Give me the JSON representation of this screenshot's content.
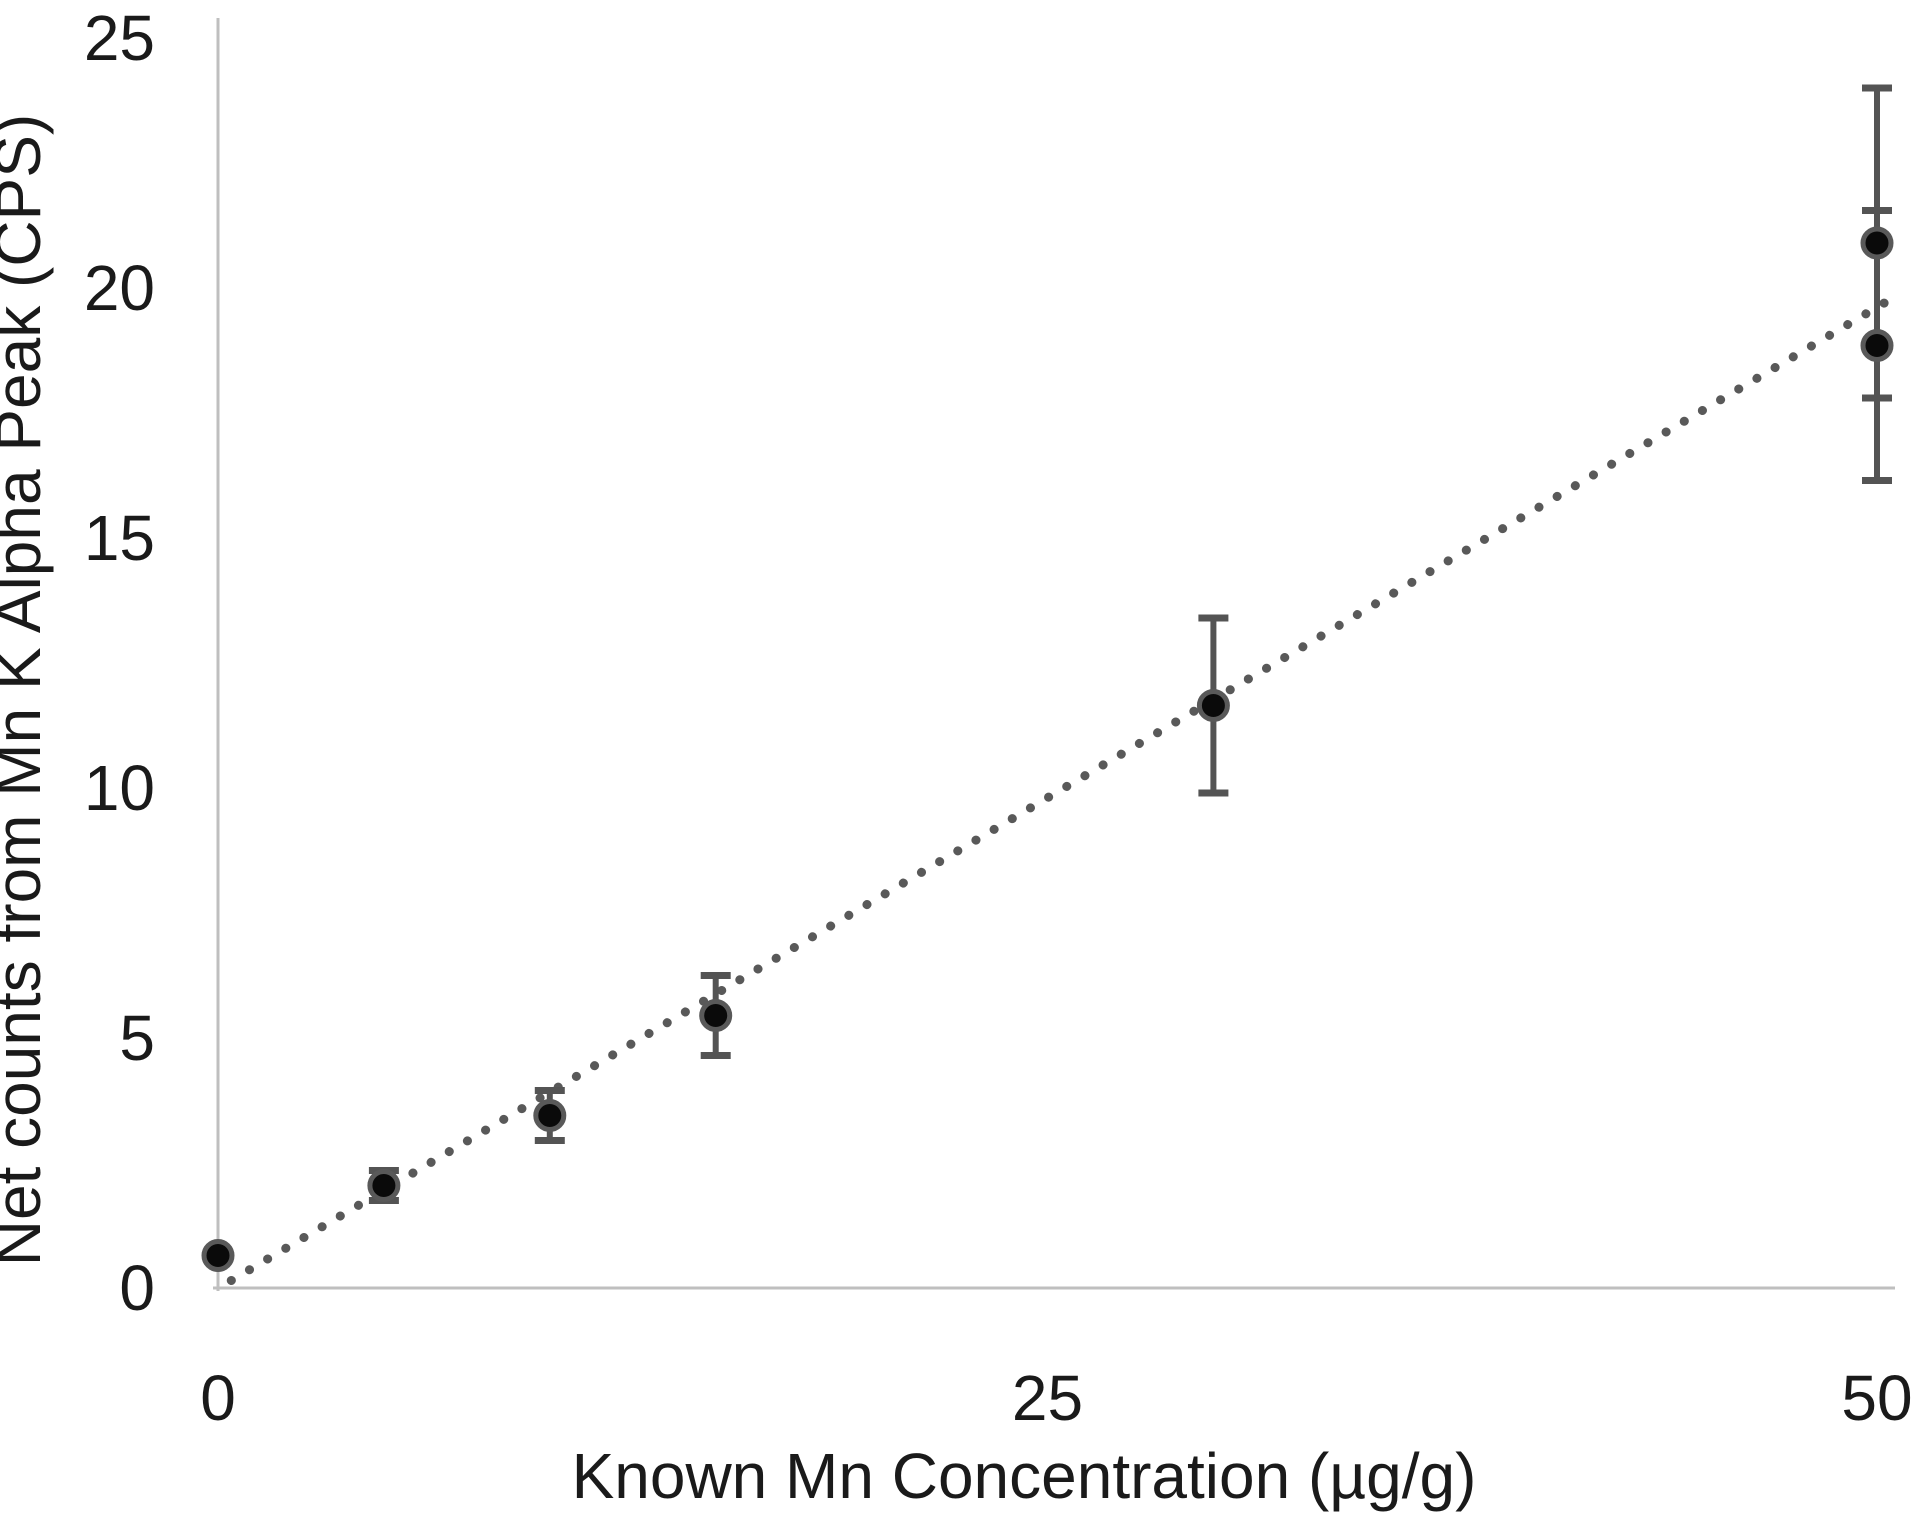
{
  "chart_data": {
    "type": "scatter",
    "title": "",
    "xlabel": "Known Mn Concentration (µg/g)",
    "ylabel": "Net counts from Mn K Alpha Peak (CPS)",
    "xlim": [
      0,
      50
    ],
    "ylim": [
      0,
      25
    ],
    "xticks": [
      0,
      25,
      50
    ],
    "yticks": [
      0,
      5,
      10,
      15,
      20,
      25
    ],
    "grid": "off",
    "legend": "none",
    "points": [
      {
        "x": 0,
        "y": 0.65,
        "yerr": 0
      },
      {
        "x": 5,
        "y": 2.05,
        "yerr": 0.3
      },
      {
        "x": 10,
        "y": 3.45,
        "yerr": 0.5
      },
      {
        "x": 15,
        "y": 5.45,
        "yerr": 0.8
      },
      {
        "x": 30,
        "y": 11.65,
        "yerr": 1.75
      },
      {
        "x": 50,
        "y": 20.9,
        "yerr": 3.1
      },
      {
        "x": 50,
        "y": 18.85,
        "yerr": 2.7
      }
    ],
    "trendline": {
      "style": "dotted",
      "x1": 0.4,
      "y1": 0.15,
      "x2": 50.6,
      "y2": 19.85,
      "slope": 0.392,
      "intercept": 0
    },
    "colors": {
      "marker_fill": "#0a0a0a",
      "marker_ring": "#595959",
      "error_bar": "#545454",
      "trend_dot": "#595959",
      "axis_line": "#bfbfbf",
      "text": "#1a1a1a"
    }
  }
}
